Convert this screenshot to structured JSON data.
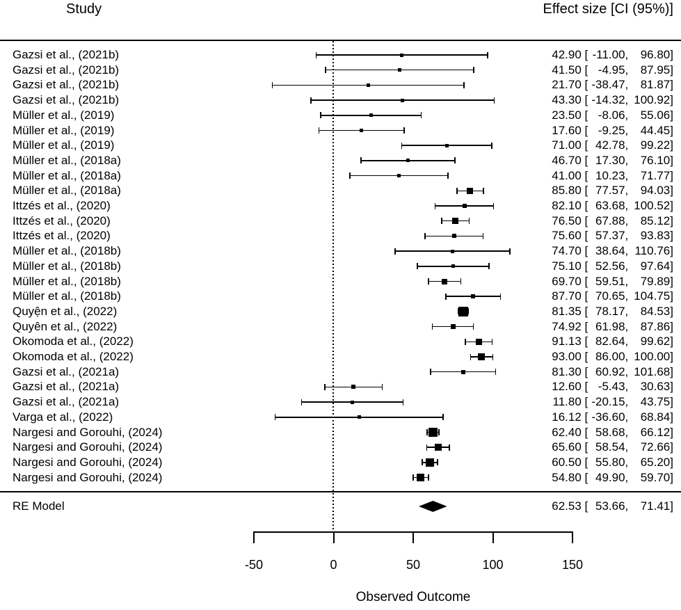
{
  "header": {
    "study": "Study",
    "effect": "Effect size [CI (95%)]"
  },
  "re_model": {
    "label": "RE Model",
    "est": 62.53,
    "lo": 53.66,
    "hi": 71.41
  },
  "axis": {
    "ticks": [
      -50,
      0,
      50,
      100,
      150
    ],
    "label": "Observed Outcome",
    "zero_reference": 0
  },
  "colors": {
    "ink": "#000000",
    "background": "#ffffff"
  },
  "chart_data": {
    "type": "forest",
    "title": "",
    "xlabel": "Observed Outcome",
    "xlim": [
      -50,
      150
    ],
    "x_ticks": [
      -50,
      0,
      50,
      100,
      150
    ],
    "zero_line": 0,
    "grid": false,
    "studies": [
      {
        "label": "Gazsi et al., (2021b)",
        "est": 42.9,
        "lo": -11.0,
        "hi": 96.8
      },
      {
        "label": "Gazsi et al., (2021b)",
        "est": 41.5,
        "lo": -4.95,
        "hi": 87.95
      },
      {
        "label": "Gazsi et al., (2021b)",
        "est": 21.7,
        "lo": -38.47,
        "hi": 81.87
      },
      {
        "label": "Gazsi et al., (2021b)",
        "est": 43.3,
        "lo": -14.32,
        "hi": 100.92
      },
      {
        "label": "Müller et al., (2019)",
        "est": 23.5,
        "lo": -8.06,
        "hi": 55.06
      },
      {
        "label": "Müller et al., (2019)",
        "est": 17.6,
        "lo": -9.25,
        "hi": 44.45
      },
      {
        "label": "Müller et al., (2019)",
        "est": 71.0,
        "lo": 42.78,
        "hi": 99.22
      },
      {
        "label": "Müller et al., (2018a)",
        "est": 46.7,
        "lo": 17.3,
        "hi": 76.1
      },
      {
        "label": "Müller et al., (2018a)",
        "est": 41.0,
        "lo": 10.23,
        "hi": 71.77
      },
      {
        "label": "Müller et al., (2018a)",
        "est": 85.8,
        "lo": 77.57,
        "hi": 94.03
      },
      {
        "label": "Ittzés et al., (2020)",
        "est": 82.1,
        "lo": 63.68,
        "hi": 100.52
      },
      {
        "label": "Ittzés et al., (2020)",
        "est": 76.5,
        "lo": 67.88,
        "hi": 85.12
      },
      {
        "label": "Ittzés et al., (2020)",
        "est": 75.6,
        "lo": 57.37,
        "hi": 93.83
      },
      {
        "label": "Müller et al., (2018b)",
        "est": 74.7,
        "lo": 38.64,
        "hi": 110.76
      },
      {
        "label": "Müller et al., (2018b)",
        "est": 75.1,
        "lo": 52.56,
        "hi": 97.64
      },
      {
        "label": "Müller et al., (2018b)",
        "est": 69.7,
        "lo": 59.51,
        "hi": 79.89
      },
      {
        "label": "Müller et al., (2018b)",
        "est": 87.7,
        "lo": 70.65,
        "hi": 104.75
      },
      {
        "label": "Quyện et al., (2022)",
        "est": 81.35,
        "lo": 78.17,
        "hi": 84.53
      },
      {
        "label": "Quyên et al., (2022)",
        "est": 74.92,
        "lo": 61.98,
        "hi": 87.86
      },
      {
        "label": "Okomoda et al., (2022)",
        "est": 91.13,
        "lo": 82.64,
        "hi": 99.62
      },
      {
        "label": "Okomoda et al., (2022)",
        "est": 93.0,
        "lo": 86.0,
        "hi": 100.0
      },
      {
        "label": "Gazsi et al., (2021a)",
        "est": 81.3,
        "lo": 60.92,
        "hi": 101.68
      },
      {
        "label": "Gazsi et al., (2021a)",
        "est": 12.6,
        "lo": -5.43,
        "hi": 30.63
      },
      {
        "label": "Gazsi et al., (2021a)",
        "est": 11.8,
        "lo": -20.15,
        "hi": 43.75
      },
      {
        "label": "Varga et al., (2022)",
        "est": 16.12,
        "lo": -36.6,
        "hi": 68.84
      },
      {
        "label": "Nargesi and Gorouhi, (2024)",
        "est": 62.4,
        "lo": 58.68,
        "hi": 66.12
      },
      {
        "label": "Nargesi and Gorouhi, (2024)",
        "est": 65.6,
        "lo": 58.54,
        "hi": 72.66
      },
      {
        "label": "Nargesi and Gorouhi, (2024)",
        "est": 60.5,
        "lo": 55.8,
        "hi": 65.2
      },
      {
        "label": "Nargesi and Gorouhi, (2024)",
        "est": 54.8,
        "lo": 49.9,
        "hi": 59.7
      }
    ],
    "summary": {
      "label": "RE Model",
      "est": 62.53,
      "lo": 53.66,
      "hi": 71.41
    },
    "legend": null
  }
}
